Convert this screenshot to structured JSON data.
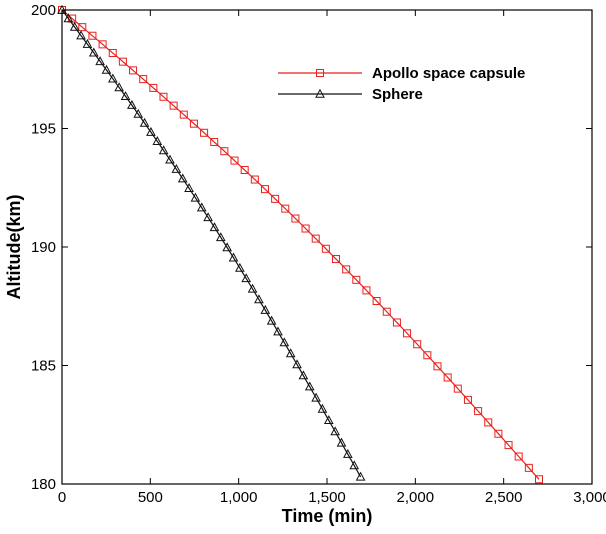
{
  "chart_data": {
    "type": "line",
    "title": "",
    "xlabel": "Time (min)",
    "ylabel": "Altitude(km)",
    "xlim": [
      0,
      3000
    ],
    "ylim": [
      180,
      200
    ],
    "xticks": [
      0,
      500,
      1000,
      1500,
      2000,
      2500,
      3000
    ],
    "xtick_labels": [
      "0",
      "500",
      "1,000",
      "1,500",
      "2,000",
      "2,500",
      "3,000"
    ],
    "yticks": [
      180,
      185,
      190,
      195,
      200
    ],
    "ytick_labels": [
      "180",
      "185",
      "190",
      "195",
      "200"
    ],
    "grid": false,
    "legend_position": "top-right",
    "series": [
      {
        "name": "Apollo space capsule",
        "color": "#e8221e",
        "marker": "square",
        "x": [
          0,
          2700
        ],
        "y": [
          200,
          180.2
        ],
        "curve": "slightly concave",
        "marker_count": 48
      },
      {
        "name": "Sphere",
        "color": "#111111",
        "marker": "triangle",
        "x": [
          0,
          1690
        ],
        "y": [
          200,
          180.3
        ],
        "curve": "slightly concave",
        "marker_count": 48
      }
    ]
  }
}
